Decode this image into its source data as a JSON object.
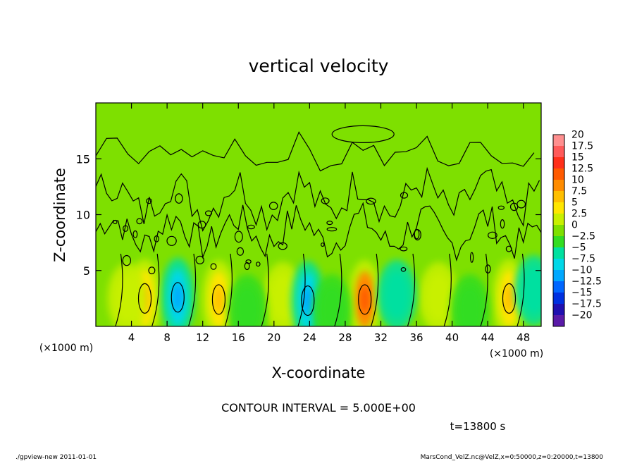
{
  "chart_data": {
    "type": "heatmap",
    "title": "vertical velocity",
    "xlabel": "X-coordinate",
    "ylabel": "Z-coordinate",
    "x_unit_left": "(×1000 m)",
    "x_unit_right": "(×1000 m)",
    "xlim": [
      0,
      50
    ],
    "ylim": [
      0,
      20
    ],
    "x_ticks": [
      4,
      8,
      12,
      16,
      20,
      24,
      28,
      32,
      36,
      40,
      44,
      48
    ],
    "x_tick_labels": [
      "4",
      "8",
      "12",
      "16",
      "20",
      "24",
      "28",
      "32",
      "36",
      "40",
      "44",
      "48"
    ],
    "y_ticks": [
      5,
      10,
      15
    ],
    "y_tick_labels": [
      "5",
      "10",
      "15"
    ],
    "colorbar": {
      "levels": [
        20,
        17.5,
        15,
        12.5,
        10,
        7.5,
        5,
        2.5,
        0,
        -2.5,
        -5,
        -7.5,
        -10,
        -12.5,
        -15,
        -17.5,
        -20
      ],
      "labels": [
        "20",
        "17.5",
        "15",
        "12.5",
        "10",
        "7.5",
        "5",
        "2.5",
        "0",
        "−2.5",
        "−5",
        "−7.5",
        "−10",
        "−12.5",
        "−15",
        "−17.5",
        "−20"
      ],
      "colors": [
        "#ff8f8f",
        "#ff5a5a",
        "#ff2f1a",
        "#ff5a00",
        "#ff8c00",
        "#ffbf00",
        "#ffe600",
        "#c8f000",
        "#7ee000",
        "#33dd22",
        "#00e0a0",
        "#00d8e8",
        "#00a8ff",
        "#0066ff",
        "#0030e0",
        "#2010b0",
        "#5a1aa8"
      ]
    },
    "blobs": [
      {
        "x": 5.5,
        "z": 2.5,
        "value": 6.5
      },
      {
        "x": 13.8,
        "z": 2.4,
        "value": 6.2
      },
      {
        "x": 30.2,
        "z": 2.4,
        "value": 10.5
      },
      {
        "x": 46.4,
        "z": 2.5,
        "value": 6.0
      },
      {
        "x": 21.0,
        "z": 2.6,
        "value": 3.5
      },
      {
        "x": 38.5,
        "z": 2.6,
        "value": 3.8
      },
      {
        "x": 3.5,
        "z": 2.5,
        "value": 3.0
      },
      {
        "x": 9.2,
        "z": 2.6,
        "value": -6.5
      },
      {
        "x": 23.8,
        "z": 2.3,
        "value": -6.0
      },
      {
        "x": 33.8,
        "z": 2.8,
        "value": -3.5
      },
      {
        "x": 49.2,
        "z": 3.2,
        "value": -4.5
      },
      {
        "x": 17.0,
        "z": 1.5,
        "value": -2.2
      },
      {
        "x": 26.5,
        "z": 1.5,
        "value": -2.0
      },
      {
        "x": 42.0,
        "z": 1.5,
        "value": -2.2
      }
    ],
    "contour_interval_text": "CONTOUR INTERVAL = 5.000E+00",
    "time_text": "t=13800 s"
  },
  "footer": {
    "left": "./gpview-new   2011-01-01",
    "right": "MarsCond_VelZ.nc@VelZ,x=0:50000,z=0:20000,t=13800"
  }
}
